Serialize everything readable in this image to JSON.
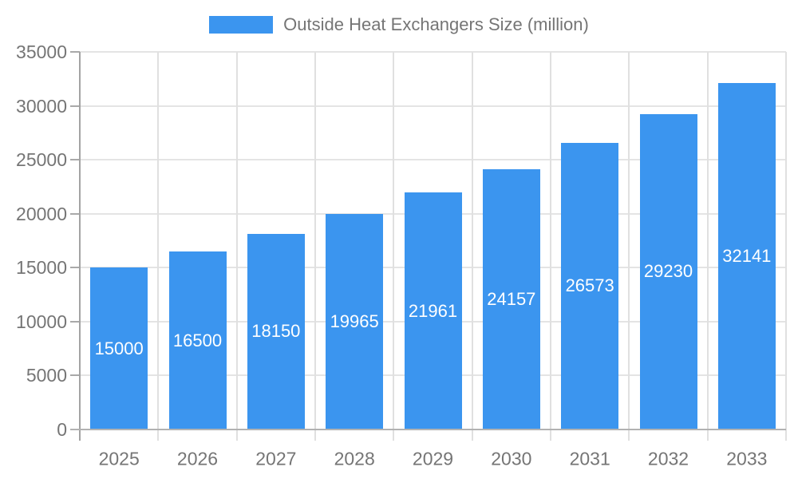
{
  "legend": {
    "label": "Outside Heat Exchangers Size (million)"
  },
  "colors": {
    "bar": "#3b95ef",
    "grid_h": "#e4e4e4",
    "grid_v": "#e0e0e0",
    "axis_y": "#a3a3a3",
    "axis_x": "#b2b2b2",
    "tick_text": "#757575",
    "value_label": "#ffffff",
    "background": "#ffffff"
  },
  "chart_data": {
    "type": "bar",
    "title": "Outside Heat Exchangers Size (million)",
    "categories": [
      "2025",
      "2026",
      "2027",
      "2028",
      "2029",
      "2030",
      "2031",
      "2032",
      "2033"
    ],
    "series": [
      {
        "name": "Outside Heat Exchangers Size (million)",
        "values": [
          15000,
          16500,
          18150,
          19965,
          21961,
          24157,
          26573,
          29230,
          32141
        ]
      }
    ],
    "value_labels": [
      "15000",
      "16500",
      "18150",
      "19965",
      "21961",
      "24157",
      "26573",
      "29230",
      "32141"
    ],
    "xlabel": "",
    "ylabel": "",
    "ylim": [
      0,
      35000
    ],
    "yticks": [
      0,
      5000,
      10000,
      15000,
      20000,
      25000,
      30000,
      35000
    ],
    "ytick_labels": [
      "0",
      "5000",
      "10000",
      "15000",
      "20000",
      "25000",
      "30000",
      "35000"
    ],
    "grid": true,
    "legend_position": "top",
    "value_label_position": "center-inside-bar"
  }
}
